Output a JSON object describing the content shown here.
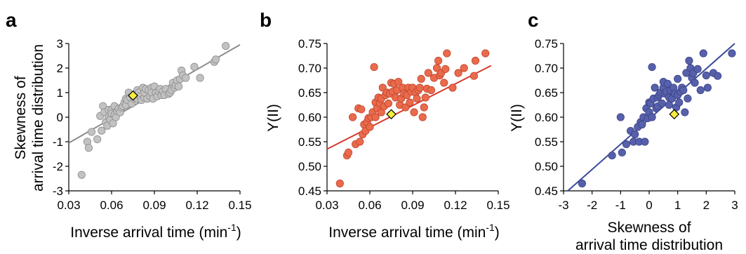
{
  "panel_labels": [
    "a",
    "b",
    "c"
  ],
  "chart_data": [
    {
      "type": "scatter",
      "panel": "a",
      "xlabel": "Inverse arrival time (min⁻¹)",
      "xlabel_main": "Inverse arrival time (min",
      "xlabel_sup": "-1",
      "xlabel_close": ")",
      "ylabel": [
        "Skewness of",
        "arrival time distribution"
      ],
      "xlim": [
        0.03,
        0.15
      ],
      "ylim": [
        -3,
        3
      ],
      "xticks": [
        "0.03",
        "0.06",
        "0.09",
        "0.12",
        "0.15"
      ],
      "yticks": [
        "-3",
        "-2",
        "-1",
        "0",
        "1",
        "2",
        "3"
      ],
      "grid": false,
      "colors": {
        "points": "#c2c2c2",
        "point_edge": "#8f8f8f",
        "fit": "#8c8c8c",
        "highlight": "#f5ee3c"
      },
      "fit_line": {
        "x": [
          0.03,
          0.15
        ],
        "y": [
          -1.05,
          2.95
        ]
      },
      "highlight": {
        "x": 0.075,
        "y": 0.88
      },
      "points": {
        "x": [
          0.039,
          0.043,
          0.044,
          0.046,
          0.05,
          0.052,
          0.053,
          0.054,
          0.055,
          0.056,
          0.057,
          0.058,
          0.058,
          0.059,
          0.06,
          0.06,
          0.061,
          0.062,
          0.062,
          0.063,
          0.064,
          0.065,
          0.066,
          0.067,
          0.068,
          0.069,
          0.07,
          0.07,
          0.071,
          0.072,
          0.073,
          0.074,
          0.076,
          0.077,
          0.078,
          0.078,
          0.079,
          0.08,
          0.081,
          0.082,
          0.083,
          0.083,
          0.084,
          0.085,
          0.086,
          0.087,
          0.088,
          0.088,
          0.089,
          0.09,
          0.091,
          0.092,
          0.093,
          0.094,
          0.095,
          0.096,
          0.097,
          0.098,
          0.1,
          0.101,
          0.102,
          0.103,
          0.104,
          0.105,
          0.106,
          0.107,
          0.108,
          0.109,
          0.11,
          0.112,
          0.118,
          0.122,
          0.132,
          0.133,
          0.14
        ],
        "y": [
          -2.35,
          -1.0,
          -1.25,
          -0.6,
          -0.9,
          0.05,
          -0.55,
          0.45,
          0.2,
          -0.2,
          -0.35,
          0.0,
          0.3,
          -0.1,
          0.3,
          0.15,
          -0.25,
          0.1,
          0.45,
          0.0,
          0.25,
          0.35,
          0.2,
          0.4,
          0.45,
          0.6,
          0.5,
          0.75,
          0.7,
          1.0,
          0.8,
          0.55,
          0.75,
          0.95,
          1.1,
          0.75,
          1.0,
          0.85,
          0.7,
          1.2,
          0.8,
          1.0,
          1.15,
          0.75,
          1.1,
          0.85,
          1.2,
          1.0,
          0.75,
          1.25,
          1.0,
          0.85,
          1.05,
          1.15,
          0.9,
          1.05,
          0.9,
          1.15,
          0.95,
          1.0,
          1.1,
          1.4,
          1.2,
          1.3,
          1.5,
          1.25,
          1.55,
          1.9,
          1.7,
          1.6,
          2.05,
          1.6,
          2.25,
          2.35,
          2.9
        ]
      }
    },
    {
      "type": "scatter",
      "panel": "b",
      "xlabel": "Inverse arrival time (min⁻¹)",
      "xlabel_main": "Inverse arrival time (min",
      "xlabel_sup": "-1",
      "xlabel_close": ")",
      "ylabel": "Y(II)",
      "xlim": [
        0.03,
        0.15
      ],
      "ylim": [
        0.45,
        0.75
      ],
      "xticks": [
        "0.03",
        "0.06",
        "0.09",
        "0.12",
        "0.15"
      ],
      "yticks": [
        "0.45",
        "0.50",
        "0.55",
        "0.60",
        "0.65",
        "0.70",
        "0.75"
      ],
      "grid": false,
      "colors": {
        "points": "#ea6a4c",
        "point_edge": "#c0462c",
        "fit": "#d63a2c",
        "highlight": "#f5ee3c"
      },
      "fit_line": {
        "x": [
          0.03,
          0.145
        ],
        "y": [
          0.535,
          0.705
        ]
      },
      "highlight": {
        "x": 0.075,
        "y": 0.606
      },
      "points": {
        "x": [
          0.039,
          0.044,
          0.045,
          0.048,
          0.05,
          0.052,
          0.053,
          0.054,
          0.055,
          0.056,
          0.057,
          0.058,
          0.059,
          0.06,
          0.061,
          0.062,
          0.063,
          0.064,
          0.064,
          0.065,
          0.066,
          0.067,
          0.068,
          0.068,
          0.069,
          0.07,
          0.071,
          0.072,
          0.073,
          0.074,
          0.075,
          0.076,
          0.077,
          0.078,
          0.079,
          0.08,
          0.081,
          0.082,
          0.083,
          0.084,
          0.085,
          0.086,
          0.087,
          0.088,
          0.089,
          0.09,
          0.091,
          0.092,
          0.093,
          0.094,
          0.095,
          0.096,
          0.097,
          0.098,
          0.099,
          0.1,
          0.101,
          0.103,
          0.105,
          0.107,
          0.108,
          0.109,
          0.11,
          0.112,
          0.113,
          0.114,
          0.118,
          0.122,
          0.126,
          0.133,
          0.134,
          0.141
        ],
        "y": [
          0.465,
          0.522,
          0.528,
          0.6,
          0.545,
          0.618,
          0.55,
          0.616,
          0.565,
          0.585,
          0.572,
          0.59,
          0.598,
          0.58,
          0.6,
          0.61,
          0.702,
          0.6,
          0.63,
          0.618,
          0.64,
          0.628,
          0.61,
          0.638,
          0.66,
          0.622,
          0.645,
          0.65,
          0.628,
          0.648,
          0.67,
          0.652,
          0.668,
          0.64,
          0.655,
          0.672,
          0.625,
          0.638,
          0.66,
          0.648,
          0.62,
          0.645,
          0.66,
          0.63,
          0.652,
          0.66,
          0.61,
          0.65,
          0.638,
          0.655,
          0.66,
          0.678,
          0.6,
          0.62,
          0.64,
          0.658,
          0.69,
          0.655,
          0.68,
          0.7,
          0.715,
          0.685,
          0.69,
          0.67,
          0.698,
          0.73,
          0.66,
          0.69,
          0.7,
          0.684,
          0.715,
          0.73
        ]
      }
    },
    {
      "type": "scatter",
      "panel": "c",
      "xlabel": [
        "Skewness of",
        "arrival time distribution"
      ],
      "ylabel": "Y(II)",
      "xlim": [
        -3,
        3
      ],
      "ylim": [
        0.45,
        0.75
      ],
      "xticks": [
        "-3",
        "-2",
        "-1",
        "0",
        "1",
        "2",
        "3"
      ],
      "yticks": [
        "0.45",
        "0.50",
        "0.55",
        "0.60",
        "0.65",
        "0.70",
        "0.75"
      ],
      "grid": false,
      "colors": {
        "points": "#5760aa",
        "point_edge": "#3b4488",
        "fit": "#3a4a9a",
        "highlight": "#f5ee3c"
      },
      "fit_line": {
        "x": [
          -2.85,
          3.0
        ],
        "y": [
          0.45,
          0.75
        ]
      },
      "highlight": {
        "x": 0.88,
        "y": 0.606
      },
      "points": {
        "x": [
          -2.35,
          -1.3,
          -1.0,
          -0.95,
          -0.8,
          -0.65,
          -0.55,
          -0.5,
          -0.4,
          -0.35,
          -0.3,
          -0.25,
          -0.2,
          -0.15,
          -0.1,
          -0.05,
          0.0,
          0.0,
          0.05,
          0.1,
          0.1,
          0.15,
          0.2,
          0.25,
          0.3,
          0.3,
          0.35,
          0.4,
          0.45,
          0.5,
          0.5,
          0.55,
          0.6,
          0.65,
          0.7,
          0.7,
          0.75,
          0.8,
          0.85,
          0.9,
          0.95,
          1.0,
          1.0,
          1.05,
          1.1,
          1.15,
          1.2,
          1.25,
          1.3,
          1.35,
          1.4,
          1.45,
          1.5,
          1.55,
          1.6,
          1.7,
          1.8,
          1.9,
          2.0,
          2.05,
          2.25,
          2.4,
          2.9
        ],
        "y": [
          0.465,
          0.522,
          0.6,
          0.528,
          0.545,
          0.572,
          0.55,
          0.565,
          0.58,
          0.55,
          0.59,
          0.585,
          0.6,
          0.55,
          0.618,
          0.598,
          0.61,
          0.63,
          0.628,
          0.702,
          0.6,
          0.638,
          0.66,
          0.618,
          0.64,
          0.622,
          0.645,
          0.65,
          0.628,
          0.66,
          0.672,
          0.648,
          0.652,
          0.668,
          0.64,
          0.625,
          0.655,
          0.638,
          0.66,
          0.648,
          0.62,
          0.645,
          0.678,
          0.63,
          0.652,
          0.66,
          0.655,
          0.61,
          0.69,
          0.638,
          0.715,
          0.7,
          0.68,
          0.69,
          0.67,
          0.698,
          0.655,
          0.73,
          0.685,
          0.66,
          0.69,
          0.684,
          0.73
        ]
      }
    }
  ]
}
